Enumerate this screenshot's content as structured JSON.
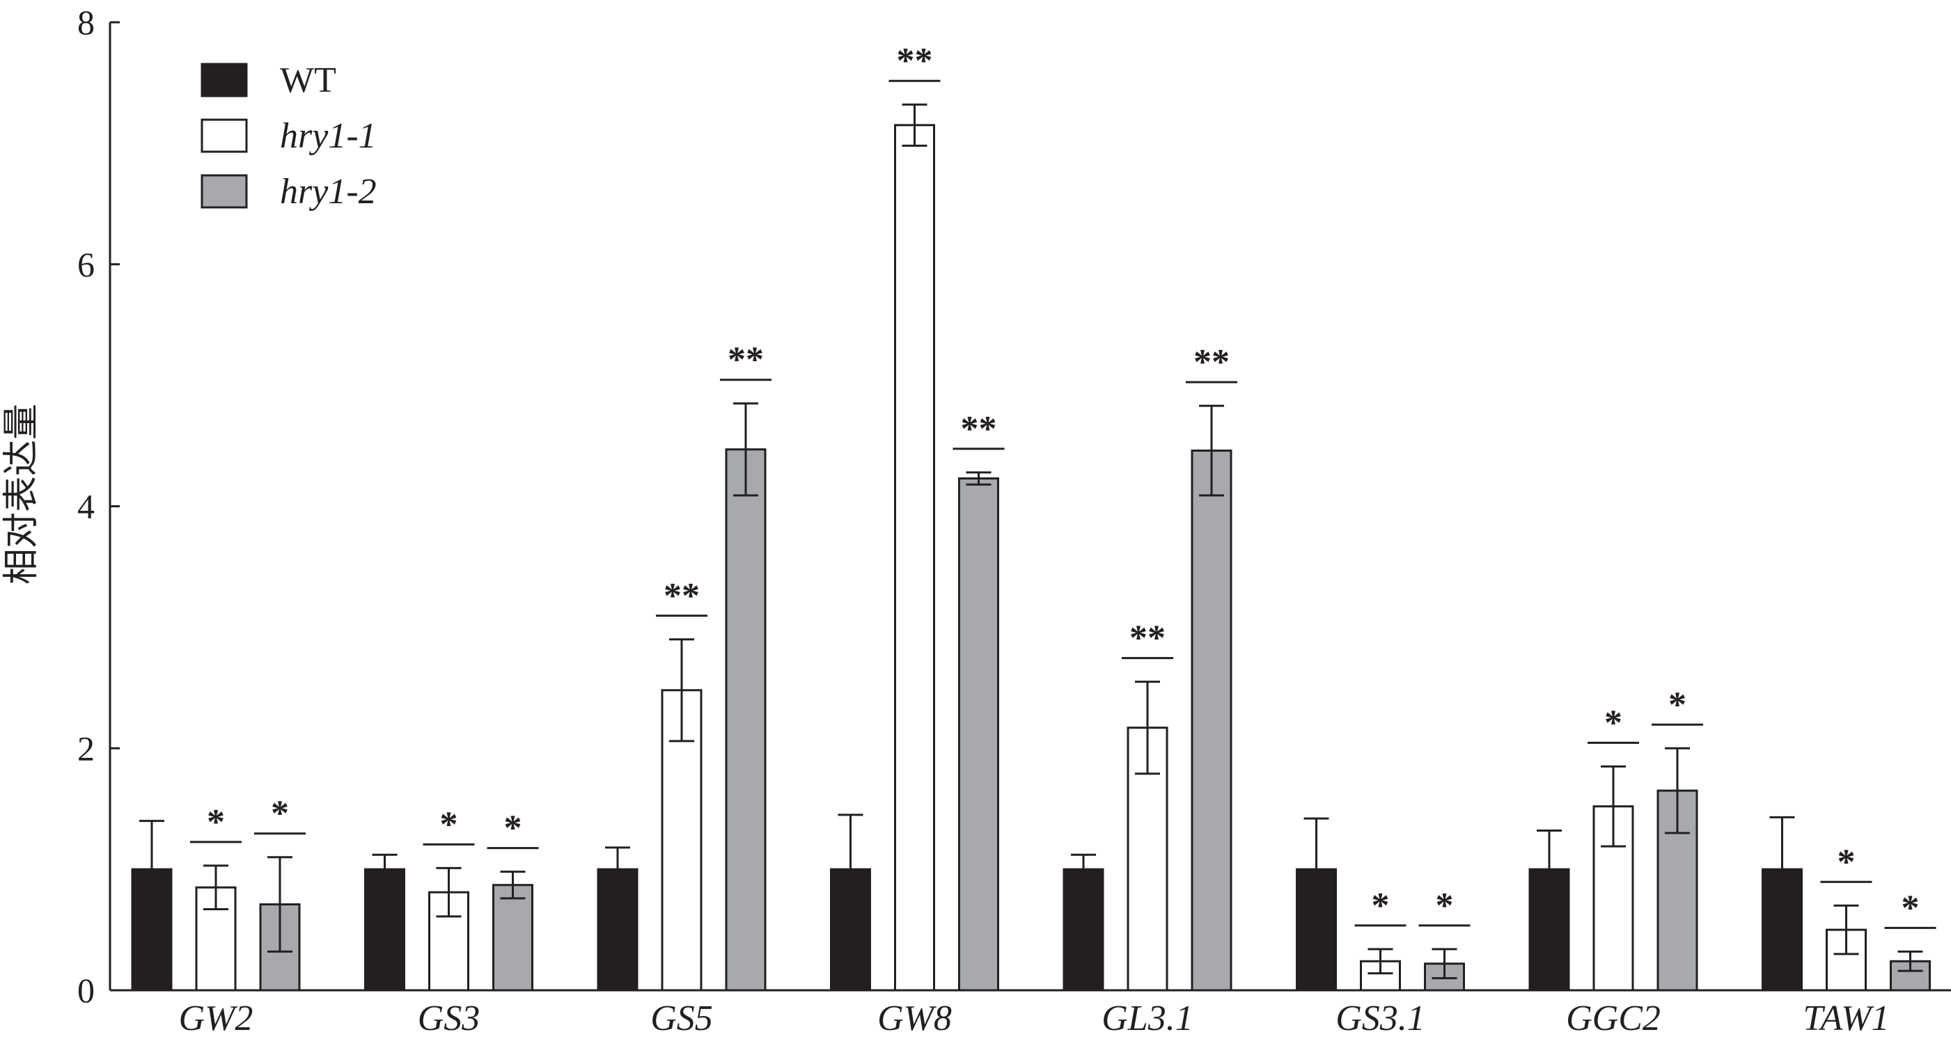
{
  "chart_data": {
    "type": "bar",
    "title": "",
    "xlabel": "",
    "ylabel": "相对表达量",
    "ylim": [
      0,
      8
    ],
    "yticks": [
      0,
      2,
      4,
      6,
      8
    ],
    "grid": false,
    "legend_position": "top-left",
    "categories": [
      "GW2",
      "GS3",
      "GS5",
      "GW8",
      "GL3.1",
      "GS3.1",
      "GGC2",
      "TAW1"
    ],
    "series": [
      {
        "name": "WT",
        "color": "#231f20",
        "values": [
          1.0,
          1.0,
          1.0,
          1.0,
          1.0,
          1.0,
          1.0,
          1.0
        ],
        "errors": [
          0.4,
          0.12,
          0.18,
          0.45,
          0.12,
          0.42,
          0.32,
          0.43
        ],
        "significance": [
          "",
          "",
          "",
          "",
          "",
          "",
          "",
          ""
        ]
      },
      {
        "name": "hry1-1",
        "color": "#ffffff",
        "values": [
          0.85,
          0.81,
          2.48,
          7.15,
          2.17,
          0.24,
          1.52,
          0.5
        ],
        "errors": [
          0.18,
          0.2,
          0.42,
          0.17,
          0.38,
          0.1,
          0.33,
          0.2
        ],
        "significance": [
          "*",
          "*",
          "**",
          "**",
          "**",
          "*",
          "*",
          "*"
        ]
      },
      {
        "name": "hry1-2",
        "color": "#a7a9ac",
        "values": [
          0.71,
          0.87,
          4.47,
          4.23,
          4.46,
          0.22,
          1.65,
          0.24
        ],
        "errors": [
          0.39,
          0.11,
          0.38,
          0.05,
          0.37,
          0.12,
          0.35,
          0.08
        ],
        "significance": [
          "*",
          "*",
          "**",
          "**",
          "**",
          "*",
          "*",
          "*"
        ]
      }
    ]
  }
}
